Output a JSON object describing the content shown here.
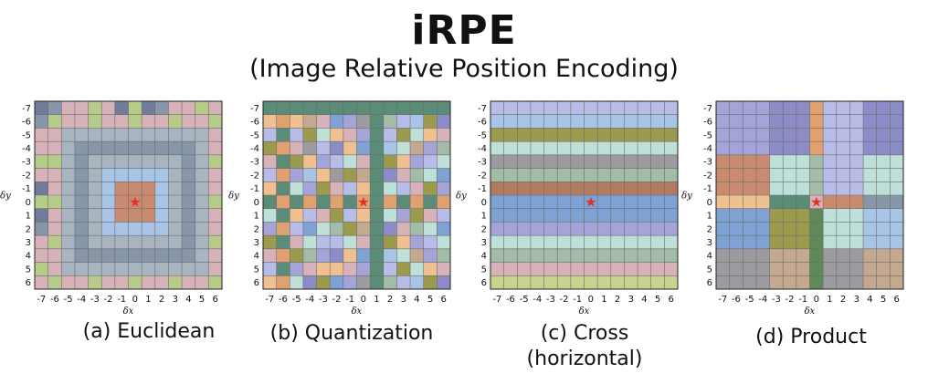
{
  "title": "iRPE",
  "subtitle": "(Image Relative Position Encoding)",
  "panels": [
    {
      "id": "a",
      "caption": [
        "(a) Euclidean"
      ],
      "scheme": "euclidean"
    },
    {
      "id": "b",
      "caption": [
        "(b) Quantization"
      ],
      "scheme": "quantization"
    },
    {
      "id": "c",
      "caption": [
        "(c) Cross",
        "(horizontal)"
      ],
      "scheme": "cross"
    },
    {
      "id": "d",
      "caption": [
        "(d) Product"
      ],
      "scheme": "product"
    }
  ],
  "axis": {
    "xlabel": "δx",
    "ylabel": "δy",
    "ticks": [
      "-7",
      "-6",
      "-5",
      "-4",
      "-3",
      "-2",
      "-1",
      "0",
      "1",
      "2",
      "3",
      "4",
      "5",
      "6"
    ]
  },
  "marker": {
    "symbol": "★",
    "color": "#e0302a",
    "position": [
      0,
      0
    ]
  },
  "palette": {
    "red": "#c98b70",
    "lightblue": "#a8c4e6",
    "bluegray": "#a8b4c0",
    "steel": "#8796a8",
    "pink": "#d7b2b8",
    "green": "#b8cc8a",
    "slate": "#707c9a",
    "lavender": "#b8bce8",
    "purple": "#8c8cc8",
    "olive": "#9c9a4c",
    "mint": "#bfe0d8",
    "sage": "#a2bca8",
    "brown": "#b07b60",
    "blue": "#7ea2d4",
    "violet": "#a4a4d8",
    "orange": "#e0a070",
    "tan": "#c4a890",
    "gray": "#9c9ca0",
    "teal": "#5a8c78",
    "darkgreen": "#5e8a5a",
    "peach": "#f0c090",
    "yellowgreen": "#c9d38c"
  },
  "cross_rows": [
    "lavender",
    "lightblue",
    "olive",
    "mint",
    "gray",
    "sage",
    "brown",
    "blue",
    "blue",
    "violet",
    "mint",
    "sage",
    "pink",
    "yellowgreen"
  ]
}
